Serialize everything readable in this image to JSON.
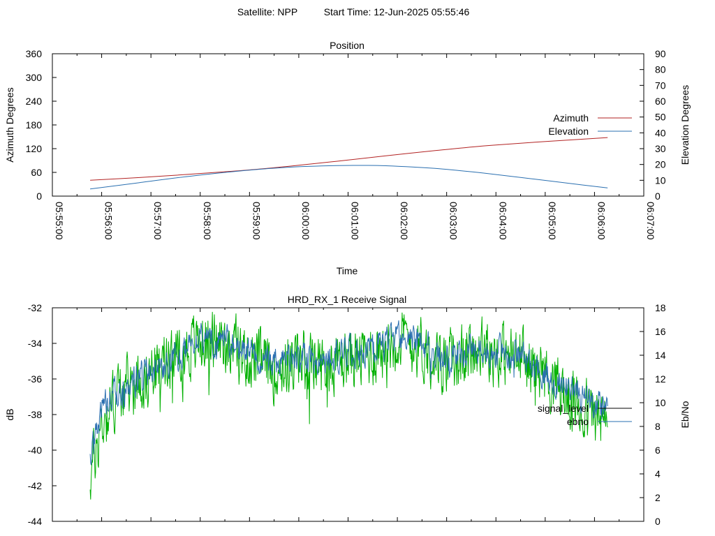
{
  "header": {
    "satellite_label": "Satellite: NPP",
    "start_time_label": "Start Time: 12-Jun-2025 05:55:46"
  },
  "colors": {
    "azimuth": "#b22222",
    "elevation": "#2a6fb0",
    "signal_level": "#000000",
    "ebno": "#2a6fb0",
    "green_trace": "#00b000"
  },
  "chart_data": [
    {
      "type": "line",
      "title": "Position",
      "xlabel": "Time",
      "ylabel": "Azimuth Degrees",
      "y2label": "Elevation Degrees",
      "xlim": [
        "05:55:00",
        "06:07:00"
      ],
      "ylim": [
        0,
        360
      ],
      "y2lim": [
        0,
        90
      ],
      "yticks": [
        "0",
        "60",
        "120",
        "180",
        "240",
        "300",
        "360"
      ],
      "y2ticks": [
        "0",
        "10",
        "20",
        "30",
        "40",
        "50",
        "60",
        "70",
        "80",
        "90"
      ],
      "xticks": [
        "05:55:00",
        "05:56:00",
        "05:57:00",
        "05:58:00",
        "05:59:00",
        "06:00:00",
        "06:01:00",
        "06:02:00",
        "06:03:00",
        "06:04:00",
        "06:05:00",
        "06:06:00",
        "06:07:00"
      ],
      "legend_position": "right",
      "series": [
        {
          "name": "Azimuth",
          "axis": "left",
          "x": [
            "05:55:46",
            "05:56:46",
            "05:57:46",
            "05:58:46",
            "05:59:46",
            "06:00:46",
            "06:01:46",
            "06:02:46",
            "06:03:46",
            "06:04:46",
            "06:05:46",
            "06:06:16"
          ],
          "values": [
            40,
            47,
            55,
            64,
            75,
            88,
            102,
            115,
            127,
            136,
            144,
            148
          ]
        },
        {
          "name": "Elevation",
          "axis": "right",
          "x": [
            "05:55:46",
            "05:56:46",
            "05:57:46",
            "05:58:46",
            "05:59:46",
            "06:00:46",
            "06:01:16",
            "06:01:46",
            "06:02:46",
            "06:03:46",
            "06:04:46",
            "06:05:46",
            "06:06:16"
          ],
          "values": [
            4.5,
            8.5,
            12.5,
            15.8,
            18.2,
            19.3,
            19.4,
            19.2,
            17.5,
            14.5,
            10.8,
            7,
            5.2
          ]
        }
      ]
    },
    {
      "type": "line",
      "title": "HRD_RX_1 Receive Signal",
      "ylabel": "dB",
      "y2label": "Eb/No",
      "xlim": [
        "05:55:00",
        "06:07:00"
      ],
      "ylim": [
        -44,
        -32
      ],
      "y2lim": [
        0,
        18
      ],
      "yticks": [
        "-44",
        "-42",
        "-40",
        "-38",
        "-36",
        "-34",
        "-32"
      ],
      "y2ticks": [
        "0",
        "2",
        "4",
        "6",
        "8",
        "10",
        "12",
        "14",
        "16",
        "18"
      ],
      "legend_position": "right",
      "series": [
        {
          "name": "signal_level",
          "axis": "left",
          "x": [
            "05:55:46",
            "05:56:00",
            "05:56:20",
            "05:56:40",
            "05:57:00",
            "05:57:20",
            "05:57:40",
            "05:58:00",
            "05:58:30",
            "05:59:00",
            "05:59:30",
            "06:00:00",
            "06:00:30",
            "06:01:00",
            "06:01:30",
            "06:02:00",
            "06:02:30",
            "06:03:00",
            "06:03:30",
            "06:04:00",
            "06:04:30",
            "06:05:00",
            "06:05:20",
            "06:05:40",
            "06:06:00",
            "06:06:16"
          ],
          "values": [
            -41.5,
            -38.5,
            -36.8,
            -36.2,
            -35.6,
            -35.2,
            -34.6,
            -33.8,
            -33.9,
            -34.8,
            -35.4,
            -34.9,
            -35.3,
            -34.8,
            -34.6,
            -33.6,
            -34.2,
            -35.1,
            -34.4,
            -34.6,
            -34.9,
            -35.8,
            -36.7,
            -37.6,
            -37.9,
            -38.8
          ]
        },
        {
          "name": "ebno",
          "axis": "right",
          "x": [
            "05:55:46",
            "05:56:00",
            "05:56:20",
            "05:56:40",
            "05:57:00",
            "05:57:20",
            "05:57:40",
            "05:58:00",
            "05:58:30",
            "05:59:00",
            "05:59:30",
            "06:00:00",
            "06:00:30",
            "06:01:00",
            "06:01:30",
            "06:02:00",
            "06:02:30",
            "06:03:00",
            "06:03:30",
            "06:04:00",
            "06:04:30",
            "06:05:00",
            "06:05:20",
            "06:05:40",
            "06:06:00",
            "06:06:16"
          ],
          "values": [
            5,
            9.5,
            11,
            12,
            12.6,
            13.3,
            14.2,
            15.4,
            15.3,
            14.2,
            13.2,
            14,
            13.4,
            14.2,
            14.5,
            15.8,
            15,
            13.7,
            14.6,
            14.3,
            14,
            12.5,
            11.8,
            10.6,
            10,
            9
          ]
        }
      ]
    }
  ]
}
